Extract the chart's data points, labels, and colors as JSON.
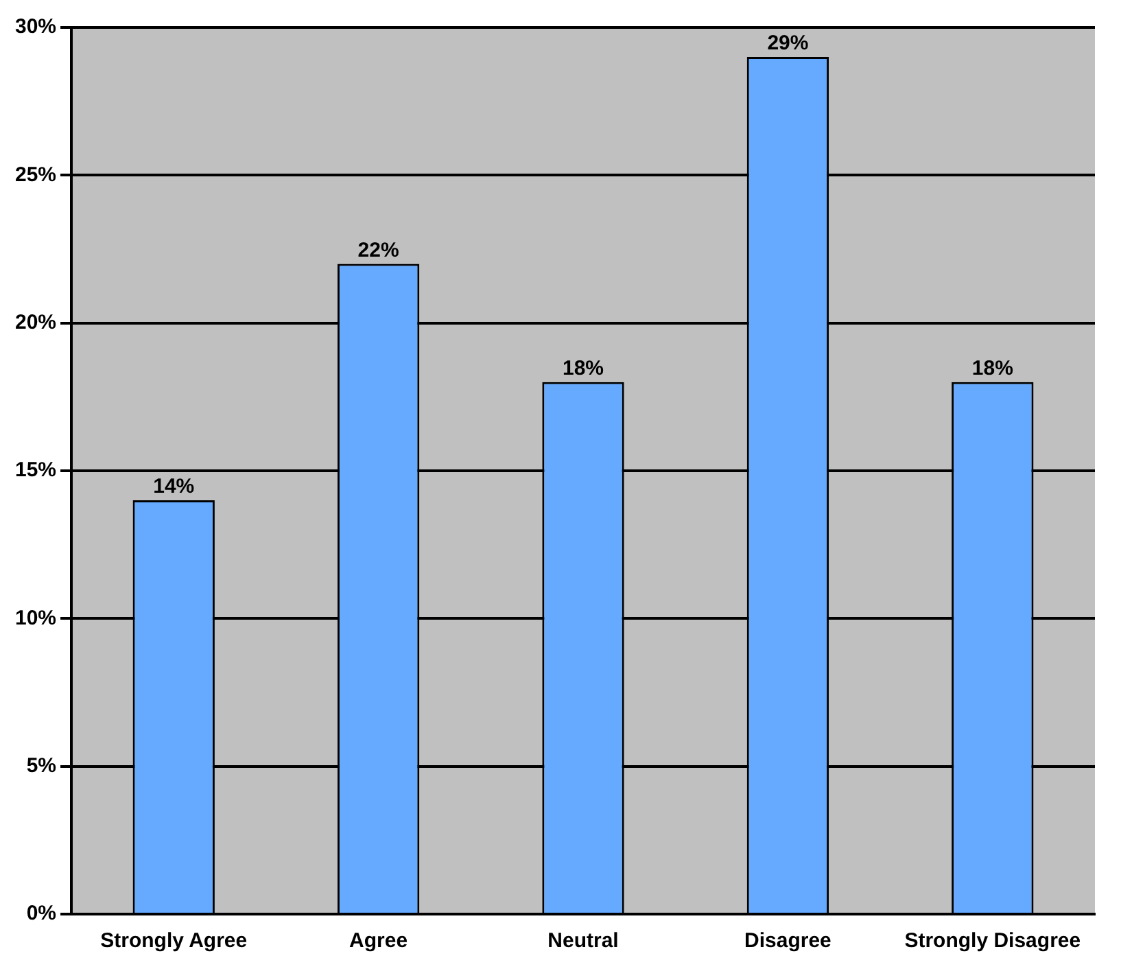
{
  "chart_data": {
    "type": "bar",
    "categories": [
      "Strongly Agree",
      "Agree",
      "Neutral",
      "Disagree",
      "Strongly Disagree"
    ],
    "values": [
      14,
      22,
      18,
      29,
      18
    ],
    "value_labels": [
      "14%",
      "22%",
      "18%",
      "29%",
      "18%"
    ],
    "color": "#66aaff",
    "ylim": [
      0,
      30
    ],
    "yticks": [
      {
        "value": 0,
        "label": "0%"
      },
      {
        "value": 5,
        "label": "5%"
      },
      {
        "value": 10,
        "label": "10%"
      },
      {
        "value": 15,
        "label": "15%"
      },
      {
        "value": 20,
        "label": "20%"
      },
      {
        "value": 25,
        "label": "25%"
      },
      {
        "value": 30,
        "label": "30%"
      }
    ],
    "grid": "y",
    "legend": false
  }
}
